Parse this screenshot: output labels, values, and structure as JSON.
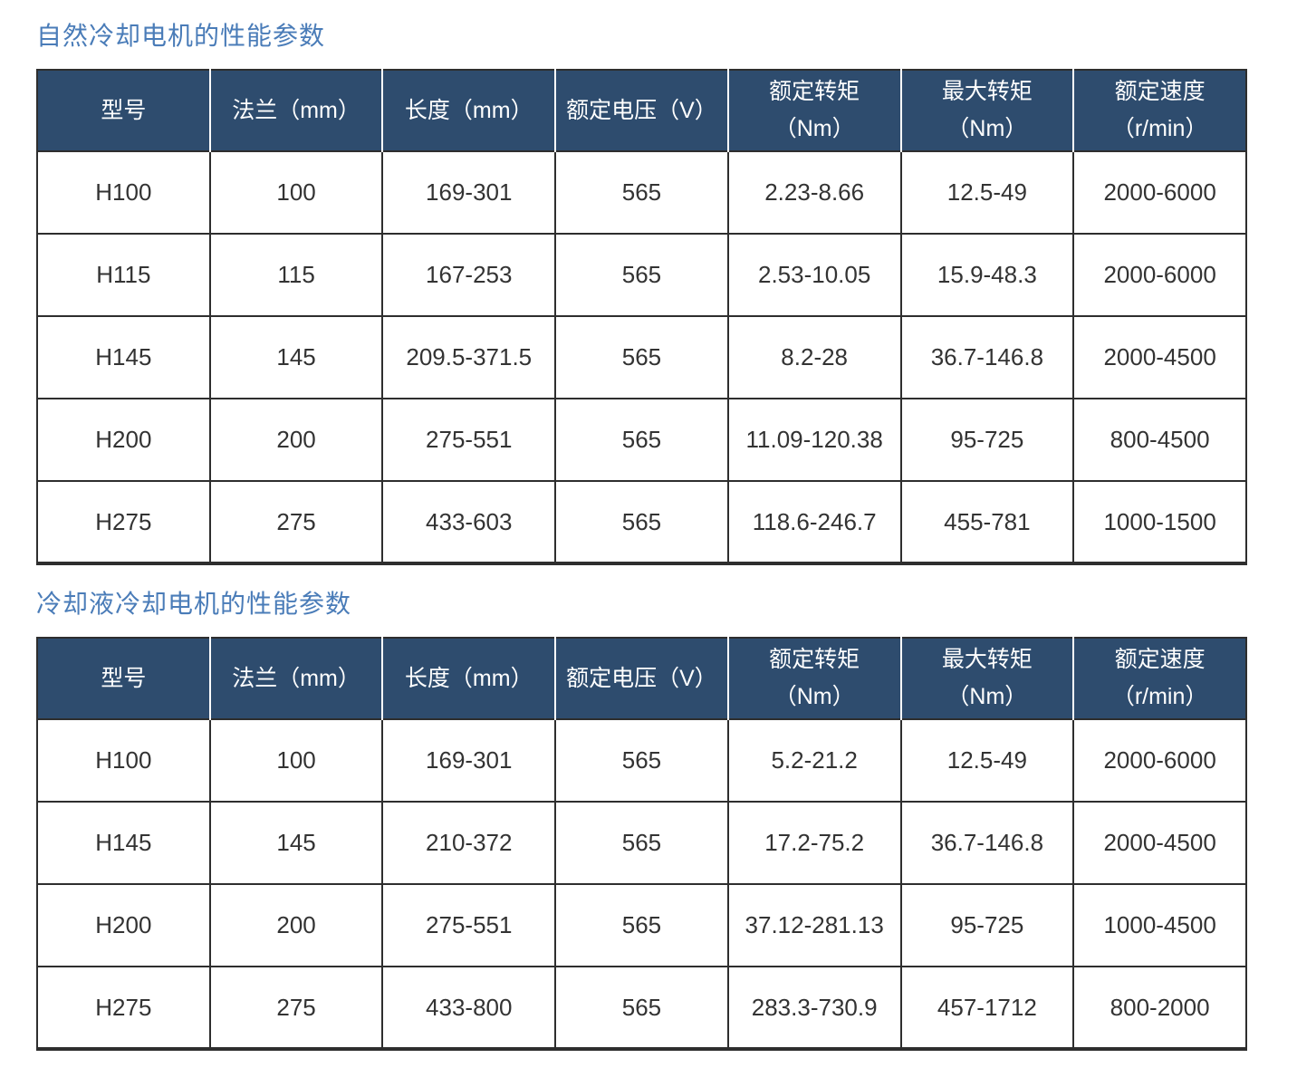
{
  "colors": {
    "title_color": "#4a7cb8",
    "header_bg": "#2e4c6e",
    "header_text": "#ffffff",
    "body_text": "#333333",
    "grid_color": "#2e2e2e",
    "page_bg": "#ffffff"
  },
  "tables": [
    {
      "title": "自然冷却电机的性能参数",
      "headers": [
        {
          "line1": "型号",
          "line2": ""
        },
        {
          "line1": "法兰（mm）",
          "line2": ""
        },
        {
          "line1": "长度（mm）",
          "line2": ""
        },
        {
          "line1": "额定电压（V）",
          "line2": ""
        },
        {
          "line1": "额定转矩",
          "line2": "（Nm）"
        },
        {
          "line1": "最大转矩",
          "line2": "（Nm）"
        },
        {
          "line1": "额定速度",
          "line2": "（r/min）"
        }
      ],
      "rows": [
        [
          "H100",
          "100",
          "169-301",
          "565",
          "2.23-8.66",
          "12.5-49",
          "2000-6000"
        ],
        [
          "H115",
          "115",
          "167-253",
          "565",
          "2.53-10.05",
          "15.9-48.3",
          "2000-6000"
        ],
        [
          "H145",
          "145",
          "209.5-371.5",
          "565",
          "8.2-28",
          "36.7-146.8",
          "2000-4500"
        ],
        [
          "H200",
          "200",
          "275-551",
          "565",
          "11.09-120.38",
          "95-725",
          "800-4500"
        ],
        [
          "H275",
          "275",
          "433-603",
          "565",
          "118.6-246.7",
          "455-781",
          "1000-1500"
        ]
      ]
    },
    {
      "title": "冷却液冷却电机的性能参数",
      "headers": [
        {
          "line1": "型号",
          "line2": ""
        },
        {
          "line1": "法兰（mm）",
          "line2": ""
        },
        {
          "line1": "长度（mm）",
          "line2": ""
        },
        {
          "line1": "额定电压（V）",
          "line2": ""
        },
        {
          "line1": "额定转矩",
          "line2": "（Nm）"
        },
        {
          "line1": "最大转矩",
          "line2": "（Nm）"
        },
        {
          "line1": "额定速度",
          "line2": "（r/min）"
        }
      ],
      "rows": [
        [
          "H100",
          "100",
          "169-301",
          "565",
          "5.2-21.2",
          "12.5-49",
          "2000-6000"
        ],
        [
          "H145",
          "145",
          "210-372",
          "565",
          "17.2-75.2",
          "36.7-146.8",
          "2000-4500"
        ],
        [
          "H200",
          "200",
          "275-551",
          "565",
          "37.12-281.13",
          "95-725",
          "1000-4500"
        ],
        [
          "H275",
          "275",
          "433-800",
          "565",
          "283.3-730.9",
          "457-1712",
          "800-2000"
        ]
      ]
    }
  ]
}
